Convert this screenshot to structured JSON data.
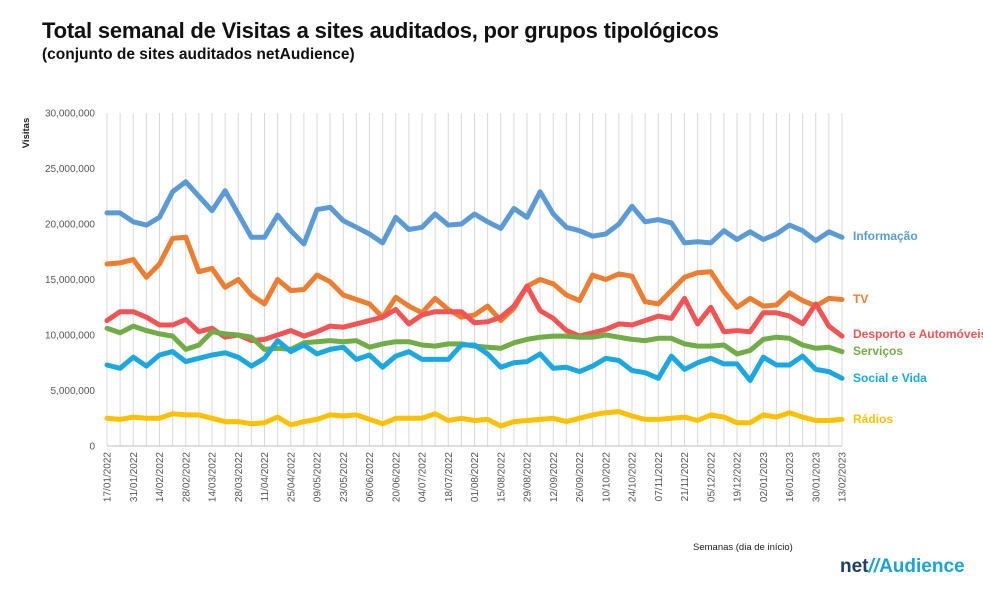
{
  "chart_data": {
    "type": "line",
    "title": "Total semanal de Visitas a sites auditados, por grupos tipológicos",
    "subtitle": "(conjunto de sites auditados netAudience)",
    "ylabel": "Visitas",
    "xlabel": "Semanas  (dia de início)",
    "ylim": [
      0,
      30000000
    ],
    "yticks": [
      0,
      5000000,
      10000000,
      15000000,
      20000000,
      25000000,
      30000000
    ],
    "ytick_labels": [
      "0",
      "5,000,000",
      "10,000,000",
      "15,000,000",
      "20,000,000",
      "25,000,000",
      "30,000,000"
    ],
    "grid": "vertical",
    "x_labels": [
      "17/01/2022",
      "31/01/2022",
      "14/02/2022",
      "28/02/2022",
      "14/03/2022",
      "28/03/2022",
      "11/04/2022",
      "25/04/2022",
      "09/05/2022",
      "23/05/2022",
      "06/06/2022",
      "20/06/2022",
      "04/07/2022",
      "18/07/2022",
      "01/08/2022",
      "15/08/2022",
      "29/08/2022",
      "12/09/2022",
      "26/09/2022",
      "10/10/2022",
      "24/10/2022",
      "07/11/2022",
      "21/11/2022",
      "05/12/2022",
      "19/12/2022",
      "02/01/2023",
      "16/01/2023",
      "30/01/2023",
      "13/02/2023"
    ],
    "weeks": 57,
    "series": [
      {
        "name": "Informação",
        "color": "#5b9bd5",
        "values": [
          21000000,
          21000000,
          20200000,
          19900000,
          20600000,
          22900000,
          23800000,
          22500000,
          21200000,
          23000000,
          20900000,
          18800000,
          18800000,
          20800000,
          19400000,
          18200000,
          21300000,
          21500000,
          20300000,
          19700000,
          19100000,
          18300000,
          20600000,
          19500000,
          19700000,
          20900000,
          19900000,
          20000000,
          20900000,
          20200000,
          19600000,
          21400000,
          20600000,
          22900000,
          20900000,
          19700000,
          19400000,
          18900000,
          19100000,
          20000000,
          21600000,
          20200000,
          20400000,
          20100000,
          18300000,
          18400000,
          18300000,
          19400000,
          18600000,
          19300000,
          18600000,
          19100000,
          19900000,
          19400000,
          18500000,
          19300000,
          18800000
        ]
      },
      {
        "name": "TV",
        "color": "#ed7d31",
        "values": [
          16400000,
          16500000,
          16800000,
          15200000,
          16400000,
          18700000,
          18800000,
          15700000,
          16000000,
          14300000,
          15000000,
          13600000,
          12800000,
          15000000,
          14000000,
          14100000,
          15400000,
          14800000,
          13600000,
          13200000,
          12800000,
          11600000,
          13400000,
          12600000,
          12000000,
          13300000,
          12300000,
          11600000,
          11800000,
          12600000,
          11300000,
          12400000,
          14400000,
          15000000,
          14600000,
          13600000,
          13100000,
          15400000,
          15000000,
          15500000,
          15300000,
          13000000,
          12800000,
          14000000,
          15200000,
          15600000,
          15700000,
          13900000,
          12500000,
          13300000,
          12600000,
          12700000,
          13800000,
          13100000,
          12600000,
          13300000,
          13200000
        ]
      },
      {
        "name": "Desporto e Automóveis",
        "color": "#f05454",
        "values": [
          11300000,
          12100000,
          12100000,
          11600000,
          10900000,
          10900000,
          11400000,
          10300000,
          10600000,
          9800000,
          10000000,
          9500000,
          9600000,
          10000000,
          10400000,
          9900000,
          10300000,
          10800000,
          10700000,
          11000000,
          11300000,
          11600000,
          12300000,
          11000000,
          11800000,
          12100000,
          12100000,
          12100000,
          11100000,
          11200000,
          11600000,
          12600000,
          14400000,
          12200000,
          11500000,
          10400000,
          9900000,
          10200000,
          10500000,
          11000000,
          10900000,
          11300000,
          11700000,
          11500000,
          13300000,
          11000000,
          12500000,
          10300000,
          10400000,
          10300000,
          12000000,
          12000000,
          11700000,
          11000000,
          12800000,
          10800000,
          9900000
        ]
      },
      {
        "name": "Serviços",
        "color": "#70ad47",
        "values": [
          10600000,
          10200000,
          10800000,
          10400000,
          10100000,
          9900000,
          8700000,
          9100000,
          10300000,
          10100000,
          10000000,
          9800000,
          8700000,
          8800000,
          8700000,
          9300000,
          9400000,
          9500000,
          9400000,
          9500000,
          8900000,
          9200000,
          9400000,
          9400000,
          9100000,
          9000000,
          9200000,
          9200000,
          9000000,
          8900000,
          8800000,
          9300000,
          9600000,
          9800000,
          9900000,
          9900000,
          9800000,
          9800000,
          10000000,
          9800000,
          9600000,
          9500000,
          9700000,
          9700000,
          9200000,
          9000000,
          9000000,
          9100000,
          8300000,
          8600000,
          9600000,
          9800000,
          9700000,
          9100000,
          8800000,
          8900000,
          8500000
        ]
      },
      {
        "name": "Social e Vida",
        "color": "#1ba8e0",
        "values": [
          7300000,
          7000000,
          8000000,
          7200000,
          8200000,
          8500000,
          7600000,
          7900000,
          8200000,
          8400000,
          8000000,
          7200000,
          7900000,
          9500000,
          8500000,
          9100000,
          8300000,
          8700000,
          8900000,
          7800000,
          8200000,
          7100000,
          8100000,
          8500000,
          7800000,
          7800000,
          7800000,
          9100000,
          9100000,
          8300000,
          7100000,
          7500000,
          7600000,
          8300000,
          7000000,
          7100000,
          6700000,
          7200000,
          7900000,
          7700000,
          6800000,
          6600000,
          6100000,
          8100000,
          6900000,
          7500000,
          7900000,
          7400000,
          7400000,
          5900000,
          8000000,
          7300000,
          7300000,
          8100000,
          6900000,
          6700000,
          6100000
        ]
      },
      {
        "name": "Rádios",
        "color": "#ffc000",
        "values": [
          2500000,
          2400000,
          2600000,
          2500000,
          2500000,
          2900000,
          2800000,
          2800000,
          2500000,
          2200000,
          2200000,
          2000000,
          2100000,
          2600000,
          1900000,
          2200000,
          2400000,
          2800000,
          2700000,
          2800000,
          2400000,
          2000000,
          2500000,
          2500000,
          2500000,
          2900000,
          2300000,
          2500000,
          2300000,
          2400000,
          1800000,
          2200000,
          2300000,
          2400000,
          2500000,
          2200000,
          2500000,
          2800000,
          3000000,
          3100000,
          2700000,
          2400000,
          2400000,
          2500000,
          2600000,
          2300000,
          2800000,
          2600000,
          2100000,
          2100000,
          2800000,
          2600000,
          3000000,
          2600000,
          2300000,
          2300000,
          2400000
        ]
      }
    ]
  },
  "logo": {
    "net": "net",
    "slash": "//",
    "brand": "Audience"
  }
}
